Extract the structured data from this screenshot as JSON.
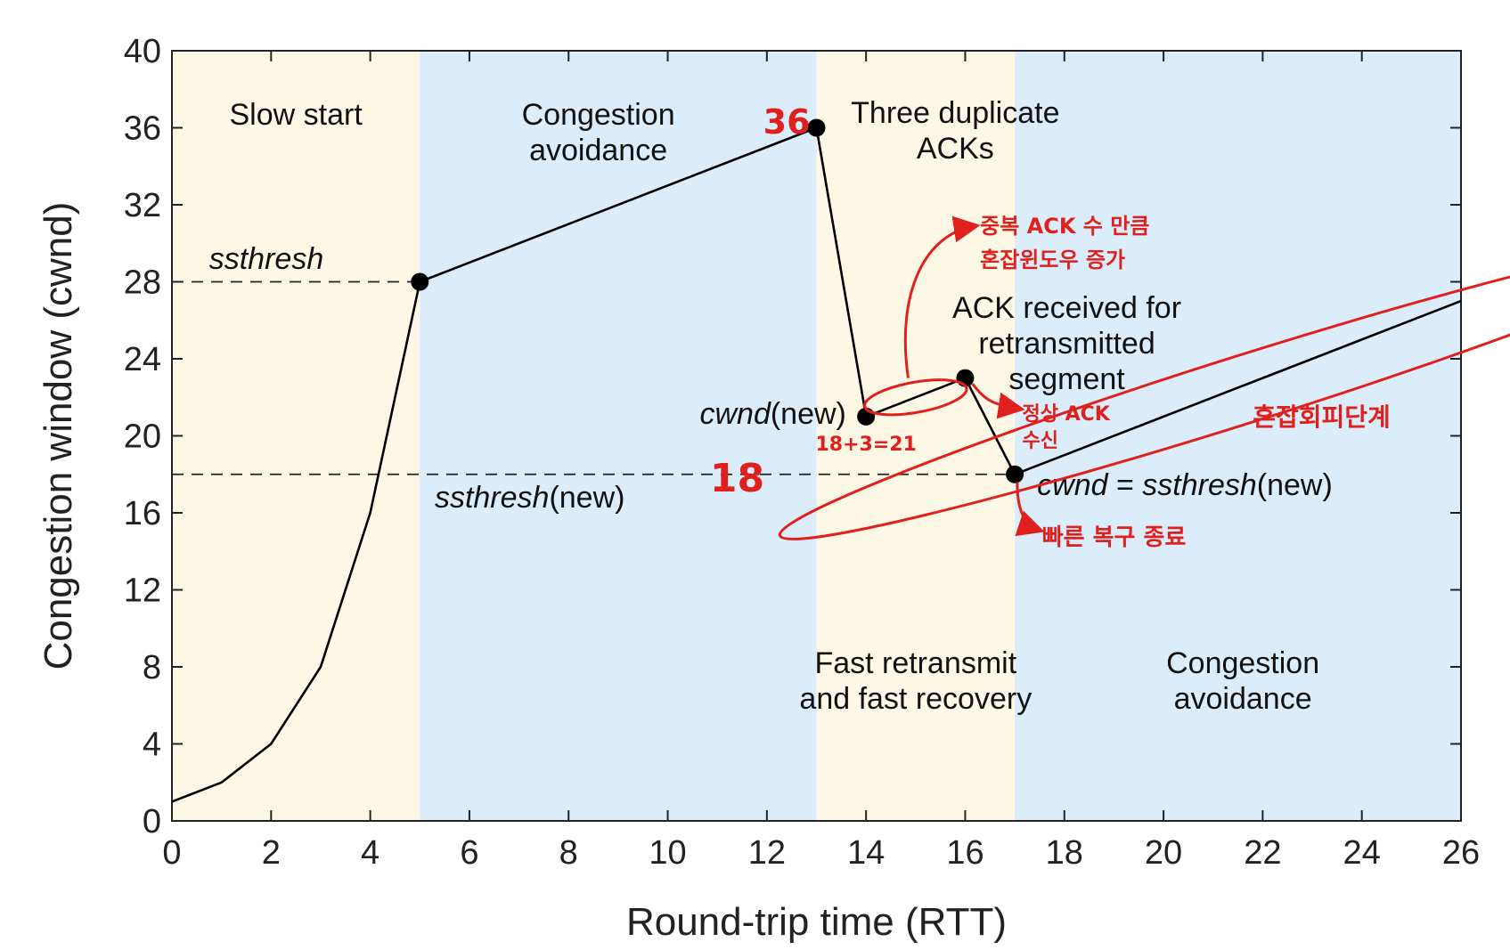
{
  "chart_data": {
    "type": "line",
    "title": "",
    "xlabel": "Round-trip time (RTT)",
    "ylabel": "Congestion window (cwnd)",
    "xlim": [
      0,
      26
    ],
    "ylim": [
      0,
      40
    ],
    "xticks": [
      0,
      2,
      4,
      6,
      8,
      10,
      12,
      14,
      16,
      18,
      20,
      22,
      24,
      26
    ],
    "yticks": [
      0,
      4,
      8,
      12,
      16,
      20,
      24,
      28,
      32,
      36,
      40
    ],
    "grid": false,
    "series": [
      {
        "x": [
          0,
          1,
          2,
          3,
          4,
          5,
          13,
          14,
          16,
          17,
          26
        ],
        "y": [
          1,
          2,
          4,
          8,
          16,
          28,
          36,
          21,
          23,
          18,
          27
        ],
        "color": "#000000"
      }
    ],
    "markers": [
      {
        "x": 5,
        "y": 28
      },
      {
        "x": 13,
        "y": 36
      },
      {
        "x": 14,
        "y": 21
      },
      {
        "x": 16,
        "y": 23
      },
      {
        "x": 17,
        "y": 18
      }
    ],
    "regions": [
      {
        "x0": 0,
        "x1": 5,
        "color": "#fdf8e6",
        "label": [
          "Slow start"
        ]
      },
      {
        "x0": 5,
        "x1": 13,
        "color": "#dbedfb",
        "label": [
          "Congestion",
          "avoidance"
        ]
      },
      {
        "x0": 13,
        "x1": 17,
        "color": "#fdf8e6",
        "label": [
          "Fast retransmit",
          "and fast recovery"
        ]
      },
      {
        "x0": 17,
        "x1": 26,
        "color": "#dbedfb",
        "label": [
          "Congestion",
          "avoidance"
        ]
      }
    ],
    "threshold_lines": [
      {
        "y": 28,
        "x0": 0,
        "x1": 5,
        "label": "ssthresh"
      },
      {
        "y": 18,
        "x0": 0,
        "x1": 17,
        "label_italic": "ssthresh",
        "label_rest": "(new)"
      }
    ],
    "annotations": {
      "three_dup": [
        "Three duplicate",
        "ACKs"
      ],
      "ack_retrans": [
        "ACK received for",
        "retransmitted",
        "segment"
      ],
      "cwnd_new": {
        "italic": "cwnd",
        "rest": "(new)"
      },
      "cwnd_eq": {
        "italic1": "cwnd",
        "mid": " = ",
        "italic2": "ssthresh",
        "rest": "(new)"
      }
    },
    "handwritten": {
      "n36": "36",
      "n18": "18",
      "calc": "18+3=21",
      "dup_ack_line1": "중복 ACK 수 만큼",
      "dup_ack_line2": "혼잡윈도우 증가",
      "normal_ack_line1": "정상 ACK",
      "normal_ack_line2": "수신",
      "fast_recovery_end": "빠른 복구 종료",
      "ca_phase": "혼잡회피단계",
      "color": "#e0201c"
    }
  }
}
